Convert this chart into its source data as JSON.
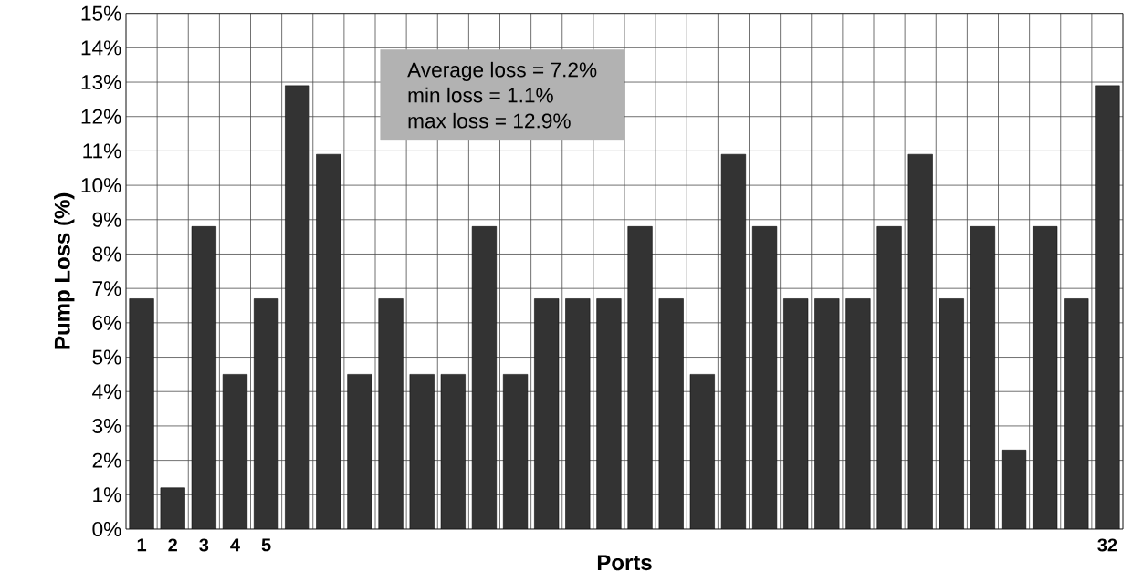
{
  "chart_data": {
    "type": "bar",
    "xlabel": "Ports",
    "ylabel": "Pump Loss (%)",
    "categories": [
      "1",
      "2",
      "3",
      "4",
      "5",
      null,
      null,
      null,
      null,
      null,
      null,
      null,
      null,
      null,
      null,
      null,
      null,
      null,
      null,
      null,
      null,
      null,
      null,
      null,
      null,
      null,
      null,
      null,
      null,
      null,
      null,
      "32"
    ],
    "values": [
      6.7,
      1.2,
      8.8,
      4.5,
      6.7,
      12.9,
      10.9,
      4.5,
      6.7,
      4.5,
      4.5,
      8.8,
      4.5,
      6.7,
      6.7,
      6.7,
      8.8,
      6.7,
      4.5,
      10.9,
      8.8,
      6.7,
      6.7,
      6.7,
      8.8,
      10.9,
      6.7,
      8.8,
      2.3,
      8.8,
      6.7,
      12.9
    ],
    "color": "#333333",
    "ylim": [
      0,
      15
    ],
    "yticks": [
      {
        "value": 0,
        "label": "0%"
      },
      {
        "value": 1,
        "label": "1%"
      },
      {
        "value": 2,
        "label": "2%"
      },
      {
        "value": 3,
        "label": "3%"
      },
      {
        "value": 4,
        "label": "4%"
      },
      {
        "value": 5,
        "label": "5%"
      },
      {
        "value": 6,
        "label": "6%"
      },
      {
        "value": 7,
        "label": "7%"
      },
      {
        "value": 8,
        "label": "8%"
      },
      {
        "value": 9,
        "label": "9%"
      },
      {
        "value": 10,
        "label": "10%"
      },
      {
        "value": 11,
        "label": "11%"
      },
      {
        "value": 12,
        "label": "12%"
      },
      {
        "value": 13,
        "label": "13%"
      },
      {
        "value": 14,
        "label": "14%"
      },
      {
        "value": 15,
        "label": "15%"
      }
    ],
    "grid": true,
    "annotations": [
      "Average loss = 7.2%",
      "min loss = 1.1%",
      "max loss = 12.9%"
    ]
  }
}
